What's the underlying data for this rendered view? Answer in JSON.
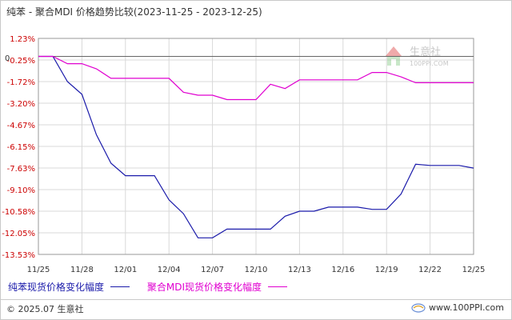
{
  "header": {
    "title": "纯苯 - 聚合MDI 价格趋势比较(2023-11-25 - 2023-12-25)"
  },
  "watermark": {
    "brand": "生意社",
    "url": "100PPI.COM"
  },
  "footer": {
    "copyright": "© 2025.07 生意社",
    "site": "www.100PPI.com"
  },
  "colors": {
    "series_1": "#1a1aaa",
    "series_2": "#e000d0",
    "axis_label": "#cc0000",
    "grid": "#d9d9d9"
  },
  "chart_data": {
    "type": "line",
    "title": "纯苯 - 聚合MDI 价格趋势比较(2023-11-25 - 2023-12-25)",
    "y_ticks": [
      "1.23%",
      "-0.25%",
      "-1.72%",
      "-3.20%",
      "-4.67%",
      "-6.15%",
      "-7.63%",
      "-9.10%",
      "-10.58%",
      "-12.05%",
      "-13.53%"
    ],
    "x_ticks": [
      "11/25",
      "11/28",
      "12/01",
      "12/04",
      "12/07",
      "12/10",
      "12/13",
      "12/16",
      "12/19",
      "12/22",
      "12/25"
    ],
    "ylim": [
      -13.53,
      1.23
    ],
    "zero_label": "0",
    "x": [
      "11/25",
      "11/26",
      "11/27",
      "11/28",
      "11/29",
      "11/30",
      "12/01",
      "12/02",
      "12/03",
      "12/04",
      "12/05",
      "12/06",
      "12/07",
      "12/08",
      "12/09",
      "12/10",
      "12/11",
      "12/12",
      "12/13",
      "12/14",
      "12/15",
      "12/16",
      "12/17",
      "12/18",
      "12/19",
      "12/20",
      "12/21",
      "12/22",
      "12/23",
      "12/24",
      "12/25"
    ],
    "series": [
      {
        "name": "纯苯现货价格变化幅度",
        "values": [
          0,
          0,
          -1.72,
          -2.59,
          -5.35,
          -7.3,
          -8.15,
          -8.15,
          -8.15,
          -9.8,
          -10.75,
          -12.4,
          -12.4,
          -11.8,
          -11.8,
          -11.8,
          -11.8,
          -10.92,
          -10.58,
          -10.58,
          -10.3,
          -10.3,
          -10.3,
          -10.45,
          -10.45,
          -9.4,
          -7.37,
          -7.45,
          -7.45,
          -7.45,
          -7.63
        ]
      },
      {
        "name": "聚合MDI现货价格变化幅度",
        "values": [
          0,
          0,
          -0.5,
          -0.5,
          -0.85,
          -1.5,
          -1.5,
          -1.5,
          -1.5,
          -1.5,
          -2.45,
          -2.65,
          -2.65,
          -2.95,
          -2.95,
          -2.95,
          -1.9,
          -2.2,
          -1.6,
          -1.6,
          -1.6,
          -1.6,
          -1.6,
          -1.1,
          -1.1,
          -1.4,
          -1.8,
          -1.8,
          -1.8,
          -1.8,
          -1.8
        ]
      }
    ]
  }
}
